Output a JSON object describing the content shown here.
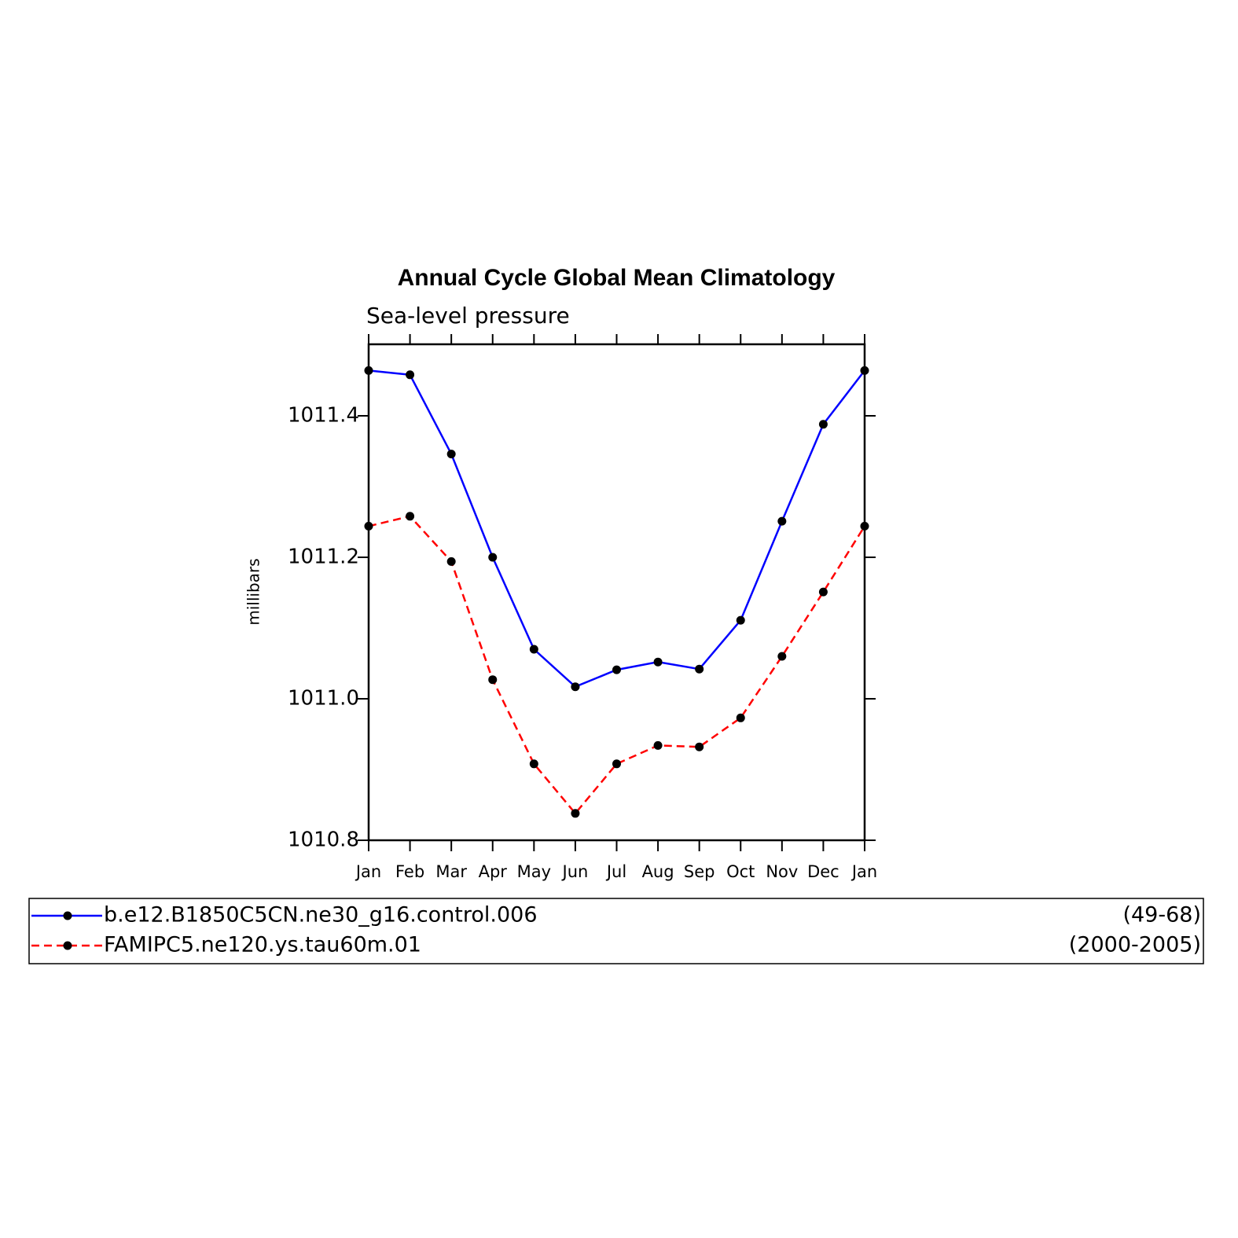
{
  "chart_data": {
    "type": "line",
    "title": "Annual Cycle Global Mean Climatology",
    "subtitle": "Sea-level pressure",
    "y_label": "millibars",
    "categories": [
      "Jan",
      "Feb",
      "Mar",
      "Apr",
      "May",
      "Jun",
      "Jul",
      "Aug",
      "Sep",
      "Oct",
      "Nov",
      "Dec",
      "Jan"
    ],
    "series": [
      {
        "name": "b.e12.B1850C5CN.ne30_g16.control.006",
        "period": "(49-68)",
        "color": "#0000ff",
        "dash": false,
        "values": [
          1011.464,
          1011.458,
          1011.346,
          1011.2,
          1011.07,
          1011.017,
          1011.041,
          1011.052,
          1011.042,
          1011.111,
          1011.251,
          1011.388,
          1011.464
        ]
      },
      {
        "name": "FAMIPC5.ne120.ys.tau60m.01",
        "period": "(2000-2005)",
        "color": "#ff0000",
        "dash": true,
        "values": [
          1011.244,
          1011.258,
          1011.194,
          1011.027,
          1010.908,
          1010.838,
          1010.908,
          1010.934,
          1010.932,
          1010.973,
          1011.06,
          1011.151,
          1011.244
        ]
      }
    ],
    "ylim": [
      1010.8,
      1011.5
    ],
    "yticks": [
      1010.8,
      {
        "value": 1011,
        "label": "1011.0"
      },
      1011.2,
      1011.4
    ],
    "grid": false
  }
}
